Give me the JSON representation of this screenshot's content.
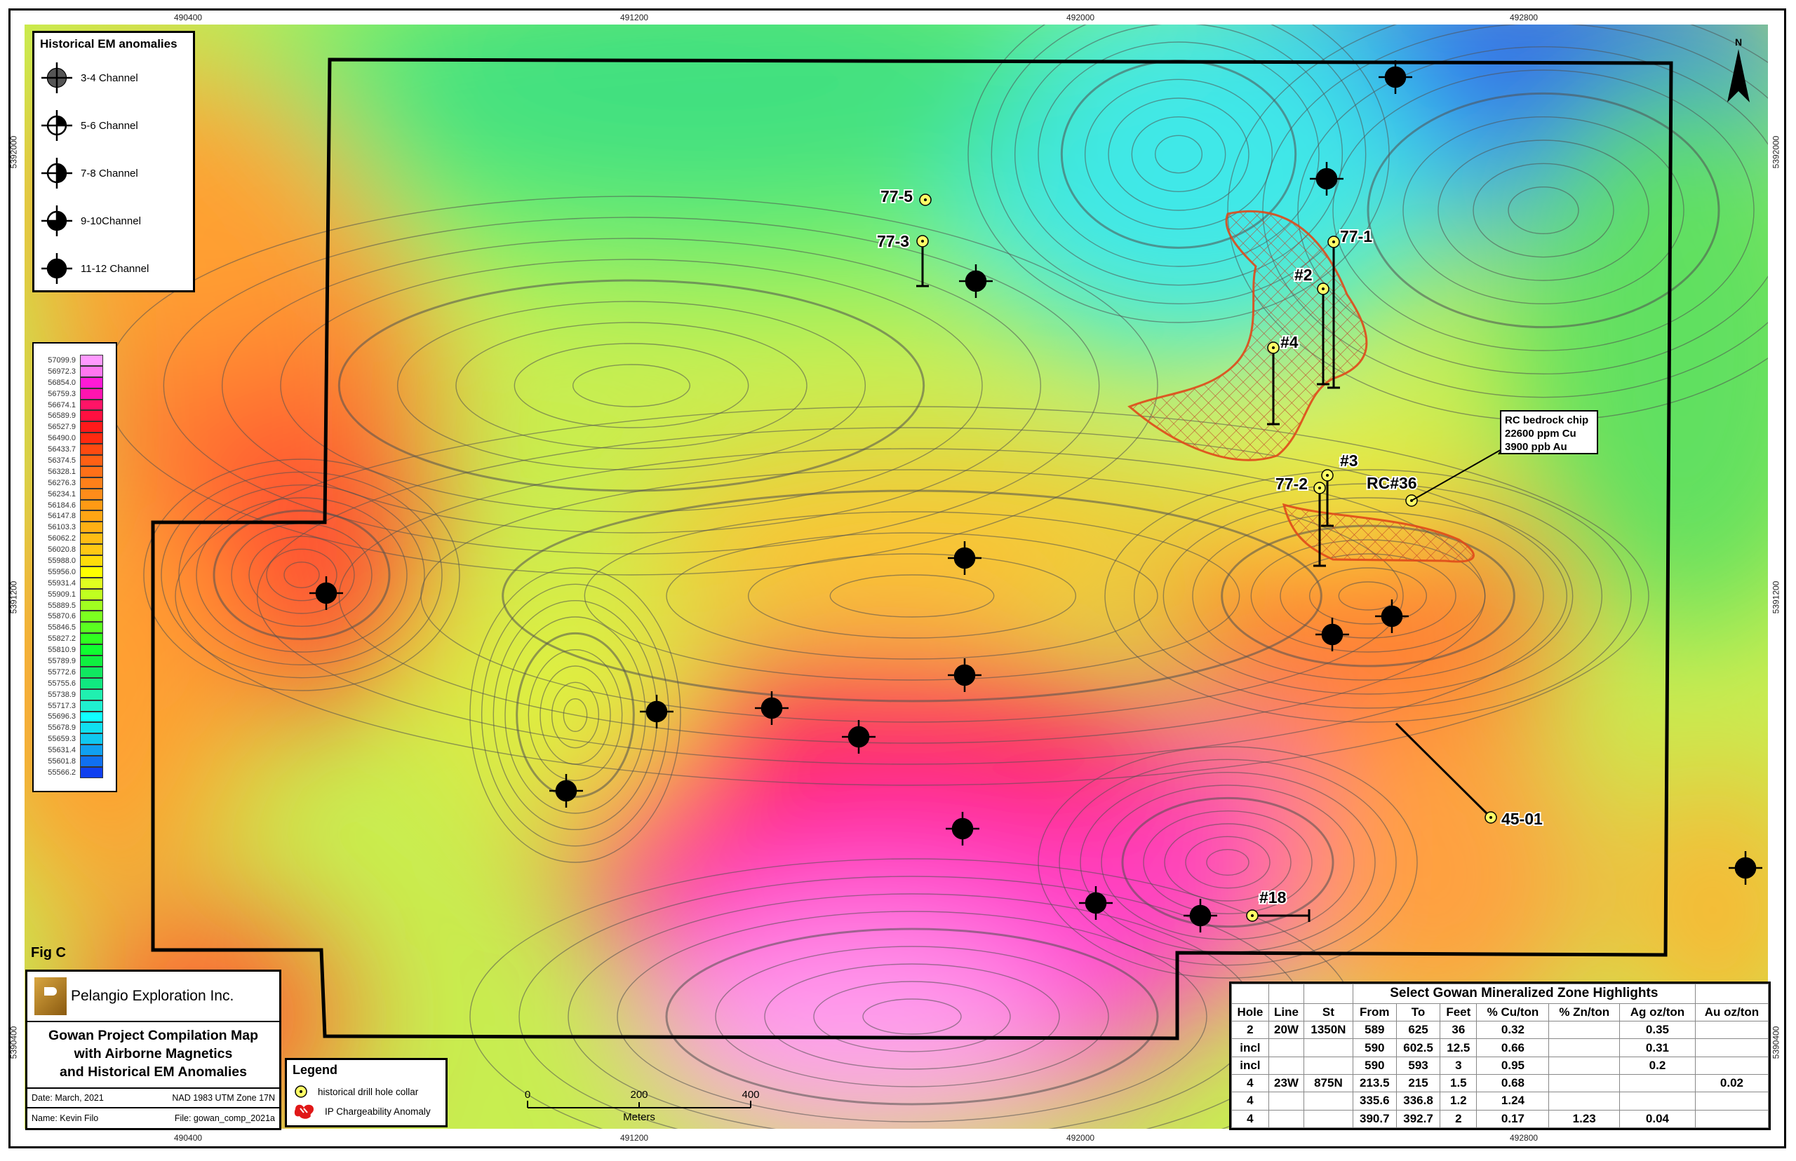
{
  "figure_label": "Fig C",
  "grid_labels": {
    "easting": [
      "490400",
      "491200",
      "492000",
      "492800"
    ],
    "northing": [
      "5392000",
      "5391200",
      "5390400"
    ]
  },
  "north_arrow": "N",
  "em_legend": {
    "title": "Historical EM anomalies",
    "items": [
      {
        "label": "3-4 Channel",
        "fill": "quarter-grey"
      },
      {
        "label": "5-6 Channel",
        "fill": "one-quarter"
      },
      {
        "label": "7-8 Channel",
        "fill": "half"
      },
      {
        "label": "9-10Channel",
        "fill": "three-quarter"
      },
      {
        "label": "11-12 Channel",
        "fill": "full"
      }
    ]
  },
  "color_scale": {
    "values": [
      "57099.9",
      "56972.3",
      "56854.0",
      "56759.3",
      "56674.1",
      "56589.9",
      "56527.9",
      "56490.0",
      "56433.7",
      "56374.5",
      "56328.1",
      "56276.3",
      "56234.1",
      "56184.6",
      "56147.8",
      "56103.3",
      "56062.2",
      "56020.8",
      "55988.0",
      "55956.0",
      "55931.4",
      "55909.1",
      "55889.5",
      "55870.6",
      "55846.5",
      "55827.2",
      "55810.9",
      "55789.9",
      "55772.6",
      "55755.6",
      "55738.9",
      "55717.3",
      "55696.3",
      "55678.9",
      "55659.3",
      "55631.4",
      "55601.8",
      "55566.2"
    ],
    "colors": [
      "#ff99ff",
      "#ff77f0",
      "#ff1ad6",
      "#ff14b0",
      "#ff1466",
      "#ff1040",
      "#ff1a1a",
      "#ff2a10",
      "#ff4a10",
      "#ff6014",
      "#ff7018",
      "#ff801a",
      "#ff8c1a",
      "#ff9a14",
      "#ffa514",
      "#ffb014",
      "#ffbd14",
      "#ffc814",
      "#ffdc0a",
      "#ffff00",
      "#e0ff20",
      "#c0ff20",
      "#a0ff20",
      "#7cff20",
      "#5aff20",
      "#30ff20",
      "#10ff30",
      "#10f040",
      "#10e860",
      "#10e880",
      "#20f0b0",
      "#20f0d0",
      "#10ffff",
      "#10e0f0",
      "#10c8f0",
      "#10a0f0",
      "#1070f0",
      "#1040f0",
      "#0000ff"
    ]
  },
  "title_block": {
    "company": "Pelangio Exploration Inc.",
    "title_lines": [
      "Gowan Project Compilation Map",
      "with Airborne Magnetics",
      "and Historical EM Anomalies"
    ],
    "date": "Date: March, 2021",
    "datum": "NAD 1983 UTM Zone 17N",
    "name": "Name: Kevin Filo",
    "file": "File: gowan_comp_2021a"
  },
  "legend": {
    "title": "Legend",
    "items": [
      {
        "label": "historical drill hole collar",
        "icon": "drill-collar-icon"
      },
      {
        "label": "IP Chargeability Anomaly",
        "icon": "ip-anomaly-icon"
      }
    ]
  },
  "scale_bar": {
    "ticks": [
      "0",
      "200",
      "400"
    ],
    "unit": "Meters"
  },
  "drill_holes": [
    "77-5",
    "77-3",
    "#2",
    "77-1",
    "#4",
    "#3",
    "77-2",
    "RC#36",
    "45-01",
    "#18"
  ],
  "rc_note": [
    "RC bedrock chip",
    "22600 ppm Cu",
    "3900 ppb Au"
  ],
  "colors": {
    "ip_anomaly": "#e04a1a",
    "collar_fill": "#ffff66",
    "boundary": "#000000"
  },
  "highlights_table": {
    "title": "Select Gowan Mineralized Zone Highlights",
    "columns": [
      "Hole",
      "Line",
      "St",
      "From",
      "To",
      "Feet",
      "% Cu/ton",
      "% Zn/ton",
      "Ag oz/ton",
      "Au oz/ton"
    ],
    "rows": [
      [
        "2",
        "20W",
        "1350N",
        "589",
        "625",
        "36",
        "0.32",
        "",
        "0.35",
        ""
      ],
      [
        "incl",
        "",
        "",
        "590",
        "602.5",
        "12.5",
        "0.66",
        "",
        "0.31",
        ""
      ],
      [
        "incl",
        "",
        "",
        "590",
        "593",
        "3",
        "0.95",
        "",
        "0.2",
        ""
      ],
      [
        "4",
        "23W",
        "875N",
        "213.5",
        "215",
        "1.5",
        "0.68",
        "",
        "",
        "0.02"
      ],
      [
        "4",
        "",
        "",
        "335.6",
        "336.8",
        "1.2",
        "1.24",
        "",
        "",
        ""
      ],
      [
        "4",
        "",
        "",
        "390.7",
        "392.7",
        "2",
        "0.17",
        "1.23",
        "0.04",
        ""
      ]
    ]
  }
}
